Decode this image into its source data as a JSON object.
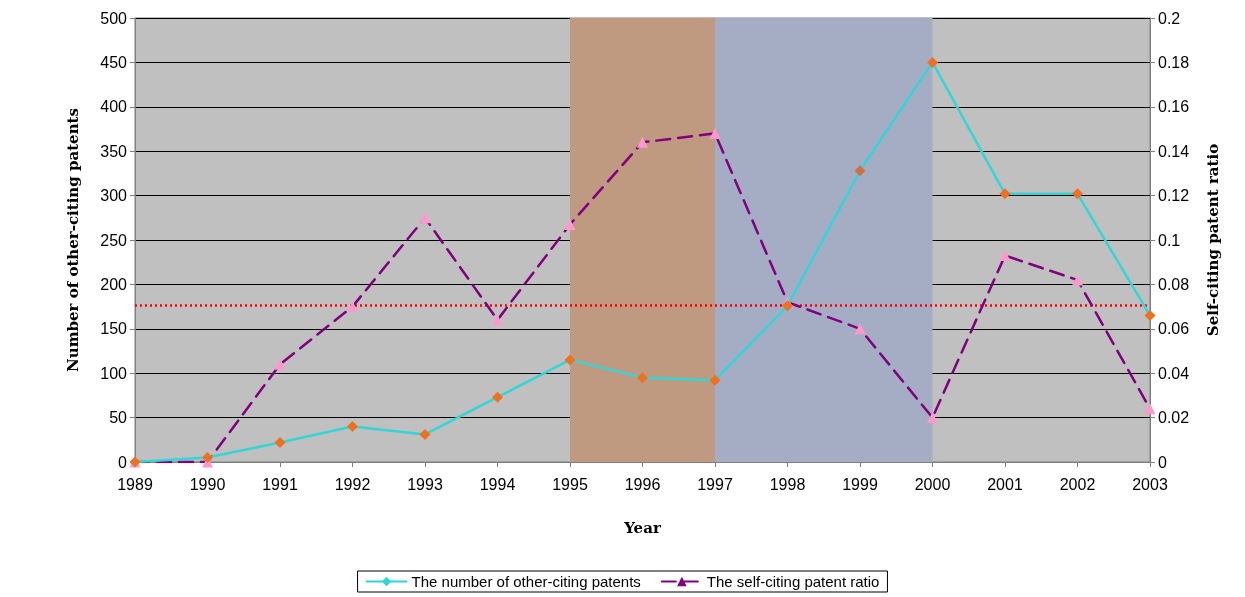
{
  "chart_data": {
    "type": "line",
    "xlabel": "Year",
    "ylabel": "Number of other-citing patents",
    "y2label": "Self-citing patent ratio",
    "categories": [
      "1989",
      "1990",
      "1991",
      "1992",
      "1993",
      "1994",
      "1995",
      "1996",
      "1997",
      "1998",
      "1999",
      "2000",
      "2001",
      "2002",
      "2003"
    ],
    "series": [
      {
        "name": "The number of other-citing patents",
        "color": "#33d6d6",
        "marker": "diamond",
        "line_style": "solid",
        "colors": [
          "#f07020",
          "#f07020",
          "#f07020",
          "#f07020",
          "#f07020",
          "#f07020",
          "#f07020",
          "#f07020",
          "#f07020",
          "#f07020",
          "#d07040",
          "#f07020",
          "#f07020",
          "#f07020",
          "#f07020"
        ],
        "values": [
          0,
          5,
          22,
          40,
          31,
          73,
          115,
          95,
          92,
          176,
          328,
          450,
          302,
          302,
          165
        ]
      },
      {
        "name": "The self-citing patent ratio",
        "color": "#800080",
        "marker": "triangle",
        "line_style": "dashed",
        "axis": "y2",
        "colors": [
          "#ff99cc",
          "#ff99cc",
          "#ff99cc",
          "#ff99cc",
          "#ff99cc",
          "#ff99cc",
          "#ff99cc",
          "#ff99cc",
          "#ff99cc",
          "#ff99cc",
          "#ff99cc",
          "#ff99cc",
          "#ff99cc",
          "#ff99cc",
          "#ff99cc"
        ],
        "values": [
          0,
          0,
          0.044,
          0.07,
          0.11,
          0.064,
          0.107,
          0.144,
          0.148,
          0.072,
          0.06,
          0.02,
          0.093,
          0.082,
          0.024
        ]
      }
    ],
    "ylim": [
      0,
      500
    ],
    "yticks": [
      0,
      50,
      100,
      150,
      200,
      250,
      300,
      350,
      400,
      450,
      500
    ],
    "y2lim": [
      0,
      0.2
    ],
    "y2ticks": [
      0,
      0.02,
      0.04,
      0.06,
      0.08,
      0.1,
      0.12,
      0.14,
      0.16,
      0.18,
      0.2
    ],
    "ref_lines": [
      {
        "axis": "y",
        "value": 176,
        "color": "#ff0000",
        "line_style": "dotted"
      }
    ],
    "bands": [
      {
        "axis": "x",
        "from": "1995",
        "to": "1997",
        "color": "#c09a80"
      },
      {
        "axis": "x",
        "from": "1997",
        "to": "2000",
        "color": "#a4adc4"
      }
    ],
    "grid": "y",
    "legend": "bottom"
  }
}
